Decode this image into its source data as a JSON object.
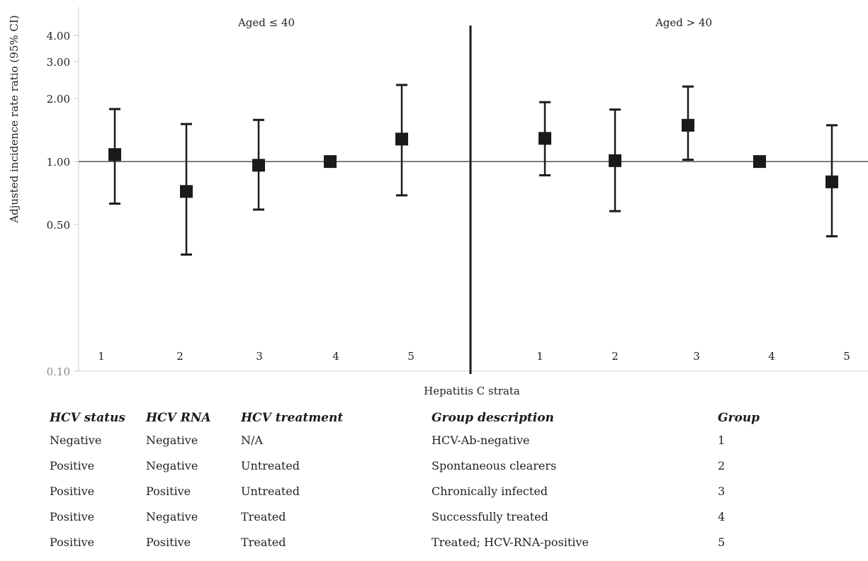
{
  "chart_data": {
    "type": "errorbar",
    "ylabel": "Adjusted incidence rate ratio (95% CI)",
    "xlabel": "Hepatitis C strata",
    "yscale": "log",
    "ylim": [
      0.1,
      5.5
    ],
    "yticks": [
      "0.10",
      "0.50",
      "1.00",
      "2.00",
      "3.00",
      "4.00"
    ],
    "reference_line": 1.0,
    "panels": [
      {
        "title": "Aged ≤ 40",
        "categories": [
          "1",
          "2",
          "3",
          "4",
          "5"
        ],
        "estimates": [
          1.08,
          0.72,
          0.96,
          1.0,
          1.28
        ],
        "lower": [
          0.63,
          0.36,
          0.59,
          1.0,
          0.69
        ],
        "upper": [
          1.78,
          1.51,
          1.58,
          1.0,
          2.32
        ]
      },
      {
        "title": "Aged > 40",
        "categories": [
          "1",
          "2",
          "3",
          "4",
          "5"
        ],
        "estimates": [
          1.29,
          1.01,
          1.49,
          1.0,
          0.8
        ],
        "lower": [
          0.86,
          0.58,
          1.02,
          1.0,
          0.44
        ],
        "upper": [
          1.92,
          1.77,
          2.28,
          1.0,
          1.49
        ]
      }
    ],
    "colors": {
      "marker": "#1a1a1a",
      "line": "#1a1a1a",
      "axis": "#cccccc",
      "ticklabel": "#555555"
    }
  },
  "legend_table": {
    "headers": [
      "HCV status",
      "HCV RNA",
      "HCV treatment",
      "Group description",
      "Group"
    ],
    "rows": [
      [
        "Negative",
        "Negative",
        "N/A",
        "HCV-Ab-negative",
        "1"
      ],
      [
        "Positive",
        "Negative",
        "Untreated",
        "Spontaneous clearers",
        "2"
      ],
      [
        "Positive",
        "Positive",
        "Untreated",
        "Chronically infected",
        "3"
      ],
      [
        "Positive",
        "Negative",
        "Treated",
        "Successfully treated",
        "4"
      ],
      [
        "Positive",
        "Positive",
        "Treated",
        "Treated; HCV-RNA-positive",
        "5"
      ]
    ]
  }
}
